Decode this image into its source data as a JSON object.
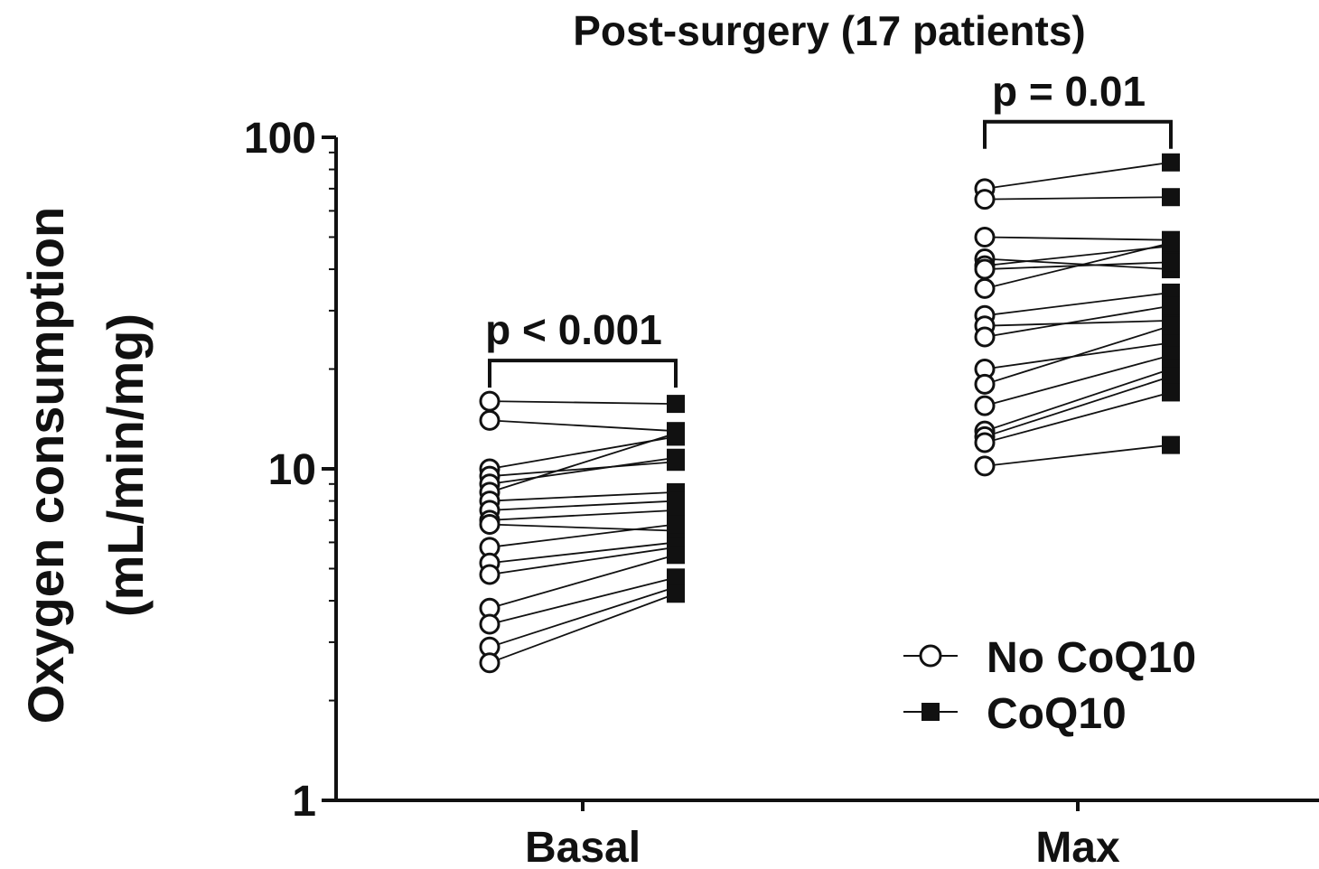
{
  "chart_data": {
    "type": "scatter",
    "subtype": "paired-before-after",
    "title": "Post-surgery  (17 patients)",
    "ylabel_line1": "Oxygen consumption",
    "ylabel_line2": "(mL/min/mg)",
    "yscale": "log",
    "ylim": [
      1,
      100
    ],
    "yticks": [
      "1",
      "10",
      "100"
    ],
    "categories": [
      "Basal",
      "Max"
    ],
    "legend": {
      "position": "bottom-right",
      "entries": [
        {
          "name": "No CoQ10",
          "marker": "open-circle"
        },
        {
          "name": "CoQ10",
          "marker": "filled-square"
        }
      ]
    },
    "groups": [
      {
        "category": "Basal",
        "annotation": "p < 0.001",
        "pairs": [
          [
            16.0,
            15.7
          ],
          [
            14.0,
            13.0
          ],
          [
            10.0,
            12.5
          ],
          [
            9.5,
            10.5
          ],
          [
            9.0,
            10.8
          ],
          [
            8.5,
            12.8
          ],
          [
            8.0,
            8.5
          ],
          [
            7.5,
            8.0
          ],
          [
            7.0,
            7.5
          ],
          [
            6.8,
            6.5
          ],
          [
            5.8,
            6.8
          ],
          [
            5.2,
            6.0
          ],
          [
            4.8,
            5.8
          ],
          [
            3.8,
            5.5
          ],
          [
            3.4,
            4.7
          ],
          [
            2.9,
            4.4
          ],
          [
            2.6,
            4.2
          ]
        ]
      },
      {
        "category": "Max",
        "annotation": "p = 0.01",
        "pairs": [
          [
            70,
            84
          ],
          [
            65,
            66
          ],
          [
            50,
            49
          ],
          [
            43,
            40
          ],
          [
            41,
            47
          ],
          [
            40,
            42
          ],
          [
            35,
            48
          ],
          [
            29,
            34
          ],
          [
            27,
            28
          ],
          [
            25,
            31
          ],
          [
            20,
            24
          ],
          [
            18,
            27
          ],
          [
            15.5,
            22
          ],
          [
            13,
            20
          ],
          [
            12.5,
            19
          ],
          [
            12,
            17
          ],
          [
            10.2,
            11.8
          ]
        ]
      }
    ],
    "colors": {
      "ink": "#111111",
      "background": "#ffffff"
    }
  }
}
